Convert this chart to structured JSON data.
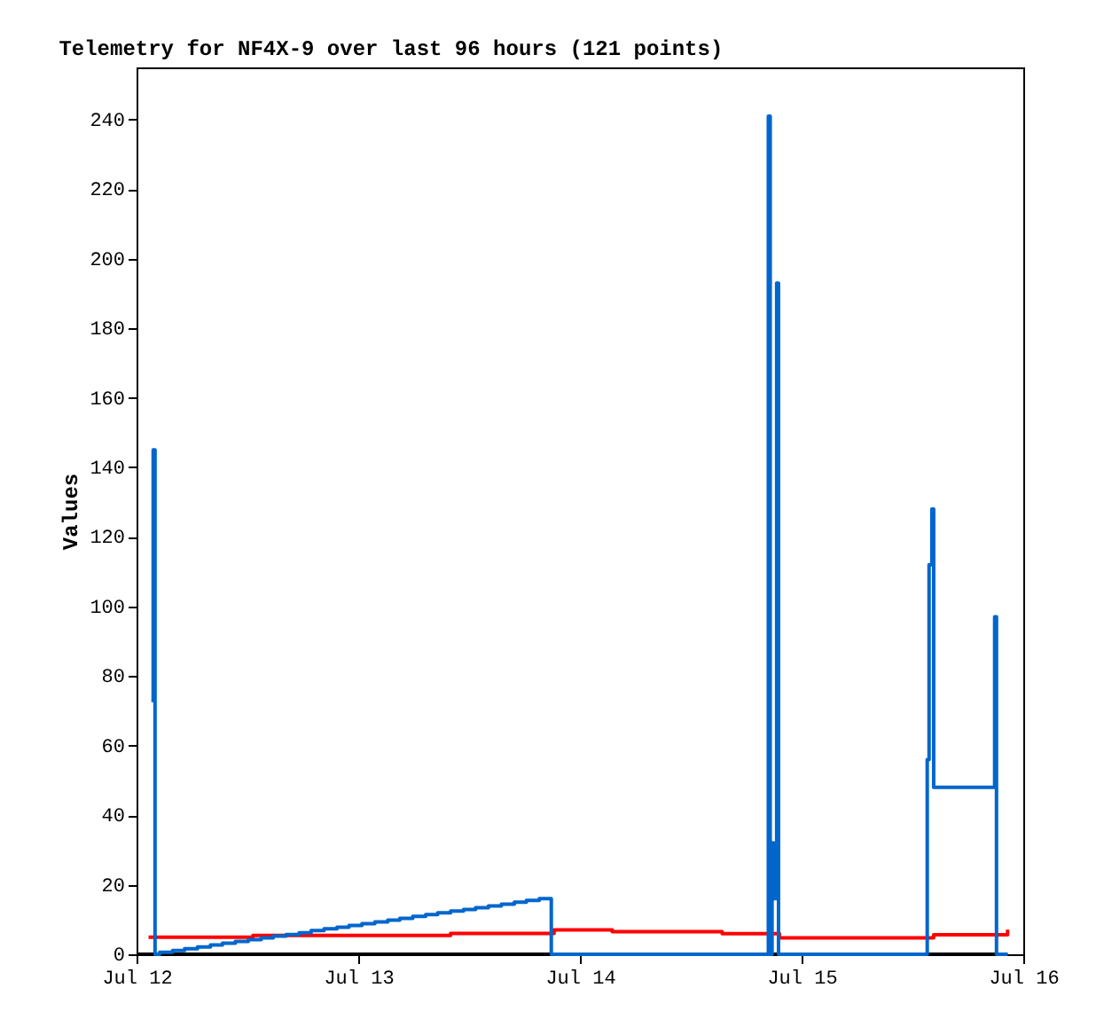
{
  "chart_data": {
    "type": "step",
    "title": "Telemetry for NF4X-9 over last 96 hours (121 points)",
    "ylabel": "Values",
    "xlim": [
      "--07-12",
      "--07-16"
    ],
    "xticks": [
      {
        "value": "--07-12",
        "label": "Jul 12"
      },
      {
        "value": "--07-13",
        "label": "Jul 13"
      },
      {
        "value": "--07-14",
        "label": "Jul 14"
      },
      {
        "value": "--07-15",
        "label": "Jul 15"
      },
      {
        "value": "--07-16",
        "label": "Jul 16"
      }
    ],
    "ylim": [
      0,
      255
    ],
    "yticks": [
      0,
      20,
      40,
      60,
      80,
      100,
      120,
      140,
      160,
      180,
      200,
      220,
      240
    ],
    "grid": false,
    "line_style": "solid",
    "series": [
      {
        "color": "#000000",
        "x": [
          "--07-12T00:00",
          "--07-15T22:18"
        ],
        "values": [
          0,
          0
        ]
      },
      {
        "color": "#ff0000",
        "x": [
          "--07-12T01:18",
          "--07-12T12:36",
          "--07-13T10:00",
          "--07-13T21:12",
          "--07-14T03:30",
          "--07-14T15:24",
          "--07-14T21:36",
          "--07-15T14:18",
          "--07-15T22:18"
        ],
        "values": [
          4.9,
          5.4,
          6.0,
          7.0,
          6.5,
          5.9,
          4.7,
          5.6,
          7.1
        ]
      },
      {
        "color": "#0066cc",
        "x": [
          "--07-12T01:36",
          "--07-12T01:48",
          "--07-12T02:00",
          "--07-12T02:30",
          "--07-12T03:54",
          "--07-12T05:12",
          "--07-12T06:36",
          "--07-12T08:00",
          "--07-12T09:18",
          "--07-12T10:42",
          "--07-12T12:06",
          "--07-12T13:30",
          "--07-12T14:48",
          "--07-12T16:12",
          "--07-12T17:36",
          "--07-12T18:54",
          "--07-12T20:18",
          "--07-12T21:42",
          "--07-12T23:00",
          "--07-13T00:24",
          "--07-13T01:48",
          "--07-13T03:12",
          "--07-13T04:30",
          "--07-13T05:54",
          "--07-13T07:18",
          "--07-13T08:36",
          "--07-13T10:00",
          "--07-13T11:24",
          "--07-13T12:42",
          "--07-13T14:06",
          "--07-13T15:30",
          "--07-13T16:54",
          "--07-13T18:12",
          "--07-13T19:36",
          "--07-13T20:54",
          "--07-14T20:24",
          "--07-14T20:36",
          "--07-14T20:48",
          "--07-14T21:00",
          "--07-14T21:18",
          "--07-14T21:30",
          "--07-15T13:36",
          "--07-15T13:48",
          "--07-15T14:06",
          "--07-15T14:18",
          "--07-15T20:54",
          "--07-15T21:06",
          "--07-15T22:18"
        ],
        "values": [
          73,
          145,
          0,
          0.6,
          1.1,
          1.6,
          2.1,
          2.7,
          3.2,
          3.7,
          4.2,
          4.7,
          5.2,
          5.7,
          6.2,
          6.8,
          7.3,
          7.8,
          8.3,
          8.8,
          9.3,
          9.8,
          10.3,
          10.9,
          11.4,
          11.9,
          12.4,
          12.9,
          13.4,
          13.9,
          14.4,
          15.0,
          15.5,
          16,
          0,
          241,
          0,
          32,
          16,
          193,
          0,
          56,
          112,
          128,
          48,
          97,
          0,
          0
        ]
      }
    ]
  }
}
